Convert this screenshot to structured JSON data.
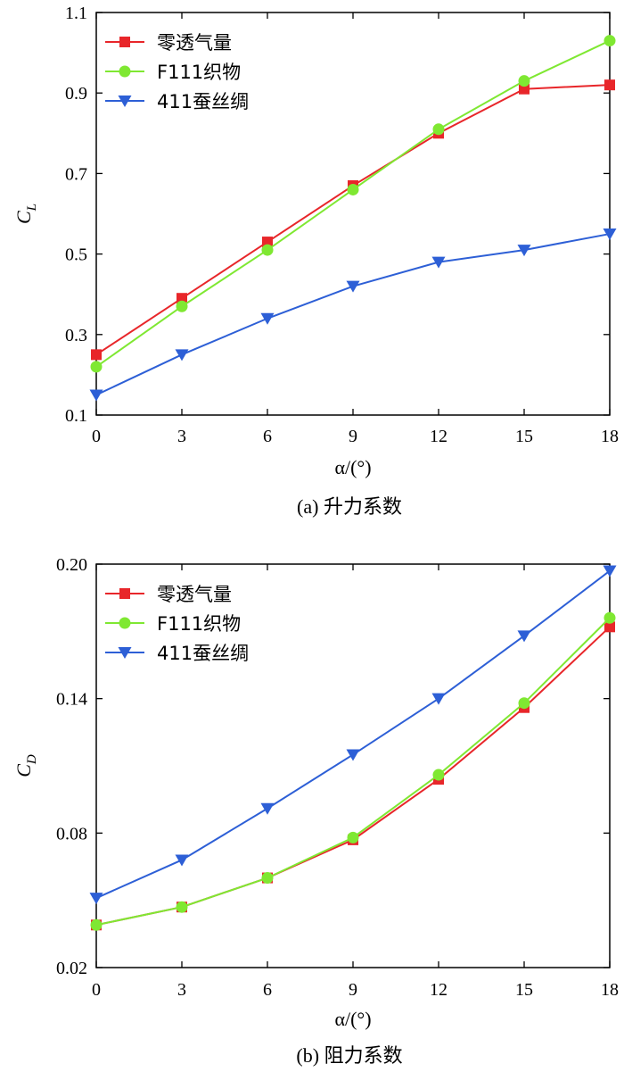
{
  "chart_data": [
    {
      "type": "line",
      "caption": "(a) 升力系数",
      "xlabel": "α/(°)",
      "ylabel": "C",
      "ylabel_sub": "L",
      "x": [
        0,
        3,
        6,
        9,
        12,
        15,
        18
      ],
      "xlim": [
        0,
        18
      ],
      "ylim": [
        0.1,
        1.1
      ],
      "xticks": [
        "0",
        "3",
        "6",
        "9",
        "12",
        "15",
        "18"
      ],
      "yticks": [
        "0.1",
        "0.3",
        "0.5",
        "0.7",
        "0.9",
        "1.1"
      ],
      "legend_position": "top-left",
      "series": [
        {
          "name": "零透气量",
          "color": "#e8262a",
          "marker": "square",
          "values": [
            0.25,
            0.39,
            0.53,
            0.67,
            0.8,
            0.91,
            0.92
          ]
        },
        {
          "name": "F111织物",
          "color": "#7fe832",
          "marker": "circle",
          "values": [
            0.22,
            0.37,
            0.51,
            0.66,
            0.81,
            0.93,
            1.03
          ]
        },
        {
          "name": "411蚕丝绸",
          "color": "#2d5fd6",
          "marker": "triangle-down",
          "values": [
            0.15,
            0.25,
            0.34,
            0.42,
            0.48,
            0.51,
            0.55
          ]
        }
      ]
    },
    {
      "type": "line",
      "caption": "(b) 阻力系数",
      "xlabel": "α/(°)",
      "ylabel": "C",
      "ylabel_sub": "D",
      "x": [
        0,
        3,
        6,
        9,
        12,
        15,
        18
      ],
      "xlim": [
        0,
        18
      ],
      "ylim": [
        0.02,
        0.2
      ],
      "xticks": [
        "0",
        "3",
        "6",
        "9",
        "12",
        "15",
        "18"
      ],
      "yticks": [
        "0.02",
        "0.08",
        "0.14",
        "0.20"
      ],
      "legend_position": "top-left",
      "series": [
        {
          "name": "零透气量",
          "color": "#e8262a",
          "marker": "square",
          "values": [
            0.039,
            0.047,
            0.06,
            0.077,
            0.104,
            0.136,
            0.172
          ]
        },
        {
          "name": "F111织物",
          "color": "#7fe832",
          "marker": "circle",
          "values": [
            0.039,
            0.047,
            0.06,
            0.078,
            0.106,
            0.138,
            0.176
          ]
        },
        {
          "name": "411蚕丝绸",
          "color": "#2d5fd6",
          "marker": "triangle-down",
          "values": [
            0.051,
            0.068,
            0.091,
            0.115,
            0.14,
            0.168,
            0.197
          ]
        }
      ]
    }
  ]
}
